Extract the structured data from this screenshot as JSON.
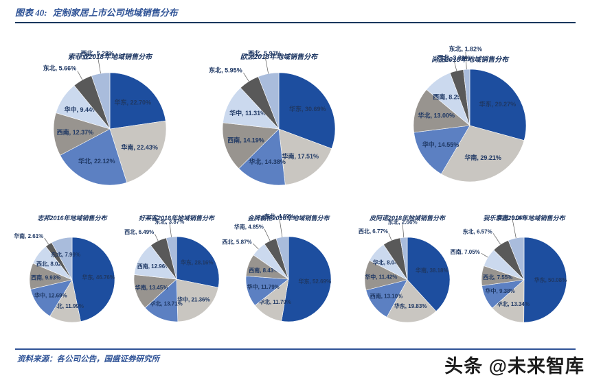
{
  "figure": {
    "label": "图表 40:",
    "title": "定制家居上市公司地域销售分布",
    "source": "资料来源：各公司公告，国盛证券研究所",
    "watermark": "头条 @未来智库"
  },
  "style": {
    "palette": [
      "#1D4E9F",
      "#C9C6C1",
      "#5C80C2",
      "#98948F",
      "#CBD9EE",
      "#595959",
      "#A9BCDC"
    ],
    "label_color": "#1F3864",
    "rule_color": "#17365D",
    "accent_color": "#2E5296"
  },
  "chart_data": [
    {
      "type": "pie",
      "title": "索菲亚2018年地域销售分布",
      "unit": "%",
      "start_angle": 0,
      "direction": "clockwise",
      "legend": "none",
      "slices": [
        {
          "label": "华东",
          "value": 22.7
        },
        {
          "label": "华南",
          "value": 22.43
        },
        {
          "label": "华北",
          "value": 22.12
        },
        {
          "label": "西南",
          "value": 12.37
        },
        {
          "label": "华中",
          "value": 9.44
        },
        {
          "label": "东北",
          "value": 5.66
        },
        {
          "label": "西北",
          "value": 5.28
        }
      ]
    },
    {
      "type": "pie",
      "title": "欧派2018年地域销售分布",
      "unit": "%",
      "start_angle": 0,
      "direction": "clockwise",
      "legend": "none",
      "slices": [
        {
          "label": "华东",
          "value": 30.69
        },
        {
          "label": "华南",
          "value": 17.51
        },
        {
          "label": "华北",
          "value": 14.38
        },
        {
          "label": "西南",
          "value": 14.19
        },
        {
          "label": "华中",
          "value": 11.31
        },
        {
          "label": "东北",
          "value": 5.95
        },
        {
          "label": "西北",
          "value": 5.97
        }
      ]
    },
    {
      "type": "pie",
      "title": "尚品2018年地域销售分布",
      "unit": "%",
      "start_angle": 0,
      "direction": "clockwise",
      "legend": "none",
      "slices": [
        {
          "label": "华东",
          "value": 29.27
        },
        {
          "label": "华南",
          "value": 29.21
        },
        {
          "label": "华中",
          "value": 14.55
        },
        {
          "label": "华北",
          "value": 13.0
        },
        {
          "label": "西南",
          "value": 8.25
        },
        {
          "label": "西北",
          "value": 3.89
        },
        {
          "label": "东北",
          "value": 1.82
        }
      ]
    },
    {
      "type": "pie",
      "title": "志邦2016年地域销售分布",
      "unit": "%",
      "start_angle": 0,
      "direction": "clockwise",
      "legend": "none",
      "slices": [
        {
          "label": "华东",
          "value": 46.76
        },
        {
          "label": "华北",
          "value": 11.99
        },
        {
          "label": "华中",
          "value": 12.69
        },
        {
          "label": "西南",
          "value": 9.93
        },
        {
          "label": "西北",
          "value": 8.02
        },
        {
          "label": "华南",
          "value": 2.61
        },
        {
          "label": "东北",
          "value": 7.99
        }
      ]
    },
    {
      "type": "pie",
      "title": "好莱客2018年地域销售分布",
      "unit": "%",
      "start_angle": 0,
      "direction": "clockwise",
      "legend": "none",
      "slices": [
        {
          "label": "华东",
          "value": 28.16
        },
        {
          "label": "华中",
          "value": 21.36
        },
        {
          "label": "华北",
          "value": 13.71
        },
        {
          "label": "华南",
          "value": 13.45
        },
        {
          "label": "西南",
          "value": 12.96
        },
        {
          "label": "西北",
          "value": 6.49
        },
        {
          "label": "东北",
          "value": 3.87
        }
      ]
    },
    {
      "type": "pie",
      "title": "金牌橱柜2016年地域销售分布",
      "unit": "%",
      "start_angle": 0,
      "direction": "clockwise",
      "legend": "none",
      "slices": [
        {
          "label": "华东",
          "value": 52.69
        },
        {
          "label": "华北",
          "value": 11.79
        },
        {
          "label": "华中",
          "value": 11.79
        },
        {
          "label": "西南",
          "value": 8.43
        },
        {
          "label": "西北",
          "value": 5.87
        },
        {
          "label": "华南",
          "value": 4.85
        },
        {
          "label": "东北",
          "value": 4.69
        }
      ]
    },
    {
      "type": "pie",
      "title": "皮阿诺2018年地域销售分布",
      "unit": "%",
      "start_angle": 0,
      "direction": "clockwise",
      "legend": "none",
      "slices": [
        {
          "label": "华南",
          "value": 38.18
        },
        {
          "label": "华东",
          "value": 19.83
        },
        {
          "label": "西南",
          "value": 13.1
        },
        {
          "label": "华中",
          "value": 11.42
        },
        {
          "label": "华北",
          "value": 8.04
        },
        {
          "label": "西北",
          "value": 6.77
        },
        {
          "label": "东北",
          "value": 2.66
        }
      ]
    },
    {
      "type": "pie",
      "title": "我乐家居2018年地域销售分布",
      "unit": "%",
      "start_angle": 0,
      "direction": "clockwise",
      "legend": "none",
      "slices": [
        {
          "label": "华东",
          "value": 50.08
        },
        {
          "label": "华北",
          "value": 13.34
        },
        {
          "label": "华中",
          "value": 9.38
        },
        {
          "label": "西北",
          "value": 7.55
        },
        {
          "label": "西南",
          "value": 7.05
        },
        {
          "label": "东北",
          "value": 6.57
        },
        {
          "label": "华南",
          "value": 6.04
        }
      ]
    }
  ]
}
